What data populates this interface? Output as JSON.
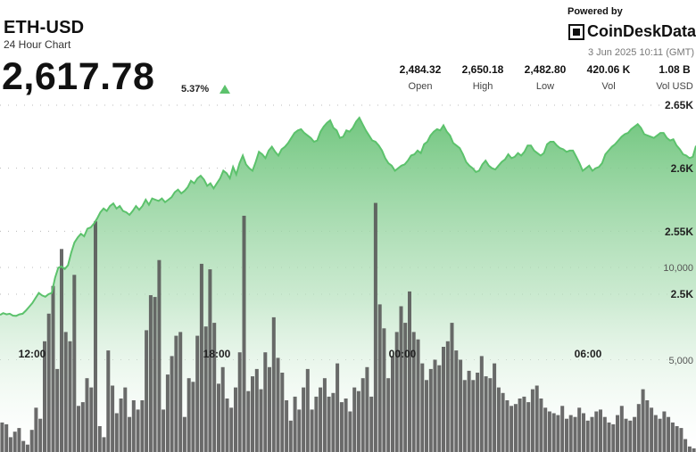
{
  "header": {
    "pair": "ETH-USD",
    "subtitle": "24 Hour Chart",
    "price": "2,617.78",
    "change": "5.37%",
    "powered_by": "Powered by",
    "brand": "CoinDeskData",
    "date": "3 Jun 2025 10:11 (GMT)"
  },
  "stats": [
    {
      "value": "2,484.32",
      "label": "Open"
    },
    {
      "value": "2,650.18",
      "label": "High"
    },
    {
      "value": "2,482.80",
      "label": "Low"
    },
    {
      "value": "420.06 K",
      "label": "Vol"
    },
    {
      "value": "1.08 B",
      "label": "Vol USD"
    }
  ],
  "colors": {
    "up": "#5cc26c",
    "area_top": "#6cc47a",
    "bar": "#555555",
    "grid": "#bbbbbb"
  },
  "chart_data": {
    "type": "area",
    "price_ticks": [
      "2.65K",
      "2.6K",
      "2.55K",
      "2.5K"
    ],
    "volume_ticks": [
      "10,000",
      "5,000"
    ],
    "time_labels": [
      "12:00",
      "18:00",
      "00:00",
      "06:00"
    ],
    "price_ylim": [
      2475,
      2660
    ],
    "volume_ylim": [
      0,
      15000
    ],
    "price": [
      2483.5,
      2485.0,
      2484.0,
      2484.5,
      2483.0,
      2482.8,
      2484.0,
      2484.5,
      2487.0,
      2490.0,
      2493.0,
      2497.0,
      2501.0,
      2499.0,
      2498.0,
      2500.0,
      2501.0,
      2513.0,
      2521.0,
      2522.0,
      2520.0,
      2523.0,
      2533.0,
      2541.0,
      2545.0,
      2548.0,
      2546.0,
      2552.0,
      2553.0,
      2556.0,
      2560.0,
      2565.0,
      2568.0,
      2566.0,
      2570.0,
      2572.0,
      2568.0,
      2570.0,
      2566.0,
      2565.0,
      2563.0,
      2566.0,
      2570.0,
      2567.0,
      2570.0,
      2575.0,
      2571.0,
      2576.0,
      2575.0,
      2574.0,
      2576.0,
      2573.0,
      2575.0,
      2577.0,
      2581.0,
      2583.0,
      2580.0,
      2582.0,
      2585.0,
      2590.0,
      2588.0,
      2592.0,
      2594.0,
      2591.0,
      2586.0,
      2588.0,
      2584.0,
      2588.0,
      2592.0,
      2598.0,
      2596.0,
      2592.0,
      2601.0,
      2595.0,
      2604.0,
      2610.0,
      2603.0,
      2600.0,
      2598.0,
      2605.0,
      2613.0,
      2611.0,
      2608.0,
      2614.0,
      2617.0,
      2613.0,
      2610.0,
      2615.0,
      2617.0,
      2620.0,
      2624.0,
      2628.0,
      2630.0,
      2631.0,
      2628.0,
      2626.0,
      2624.0,
      2621.0,
      2622.0,
      2629.0,
      2633.0,
      2636.0,
      2638.0,
      2632.0,
      2630.0,
      2624.0,
      2625.0,
      2630.0,
      2629.0,
      2632.0,
      2637.0,
      2640.0,
      2635.0,
      2630.0,
      2626.0,
      2622.0,
      2621.0,
      2618.0,
      2614.0,
      2608.0,
      2604.0,
      2602.0,
      2598.0,
      2600.0,
      2602.0,
      2603.0,
      2606.0,
      2610.0,
      2611.0,
      2614.0,
      2612.0,
      2619.0,
      2621.0,
      2626.0,
      2629.0,
      2631.0,
      2630.0,
      2634.0,
      2629.0,
      2626.0,
      2620.0,
      2618.0,
      2616.0,
      2611.0,
      2605.0,
      2602.0,
      2600.0,
      2597.0,
      2598.0,
      2603.0,
      2606.0,
      2602.0,
      2600.0,
      2599.0,
      2602.0,
      2605.0,
      2607.0,
      2611.0,
      2608.0,
      2609.0,
      2612.0,
      2610.0,
      2613.0,
      2618.0,
      2618.0,
      2614.0,
      2612.0,
      2610.0,
      2612.0,
      2619.0,
      2621.0,
      2621.0,
      2618.0,
      2616.0,
      2615.0,
      2613.0,
      2614.0,
      2614.0,
      2609.0,
      2604.0,
      2598.0,
      2600.0,
      2602.0,
      2598.0,
      2600.0,
      2601.0,
      2604.0,
      2611.0,
      2614.0,
      2617.0,
      2619.0,
      2622.0,
      2625.0,
      2627.0,
      2628.0,
      2631.0,
      2633.0,
      2635.0,
      2632.0,
      2627.0,
      2626.0,
      2625.0,
      2624.0,
      2626.0,
      2628.0,
      2628.0,
      2624.0,
      2622.0,
      2623.0,
      2618.0,
      2615.0,
      2611.0,
      2610.0,
      2608.0,
      2609.0,
      2617.78
    ],
    "volume": [
      1600,
      1500,
      800,
      1100,
      1300,
      600,
      400,
      1200,
      2400,
      1800,
      6000,
      7500,
      9000,
      4500,
      11000,
      6500,
      6000,
      9600,
      2500,
      2700,
      4000,
      3500,
      12500,
      1400,
      800,
      5500,
      3600,
      2100,
      2900,
      3500,
      1900,
      2800,
      2300,
      2800,
      6600,
      8500,
      8400,
      10400,
      2300,
      4200,
      5200,
      6300,
      6500,
      1900,
      4000,
      3800,
      6300,
      10200,
      6800,
      9900,
      7000,
      3700,
      4600,
      2900,
      2400,
      3500,
      5400,
      12800,
      3300,
      4100,
      4500,
      3400,
      5400,
      4600,
      7300,
      5100,
      4300,
      2800,
      1700,
      3000,
      2300,
      3500,
      4500,
      2300,
      3000,
      3500,
      4000,
      3000,
      3200,
      4800,
      2700,
      2900,
      2200,
      3500,
      3300,
      4000,
      4600,
      3000,
      13500,
      8000,
      6700,
      4000,
      5200,
      6500,
      7900,
      7000,
      8700,
      6500,
      6100,
      4800,
      3900,
      4500,
      5000,
      4700,
      5700,
      6000,
      7000,
      5500,
      5000,
      3900,
      4400,
      3900,
      4300,
      5200,
      4100,
      4000,
      4800,
      3500,
      3200,
      2800,
      2500,
      2600,
      2900,
      3000,
      2700,
      3400,
      3600,
      2900,
      2400,
      2200,
      2100,
      2000,
      2500,
      1800,
      2000,
      1900,
      2400,
      2100,
      1700,
      1900,
      2200,
      2300,
      1900,
      1600,
      1500,
      2000,
      2500,
      1800,
      1700,
      1900,
      2600,
      3400,
      2800,
      2400,
      2000,
      1800,
      2200,
      1900,
      1600,
      1400,
      1300,
      700,
      300,
      200
    ]
  }
}
